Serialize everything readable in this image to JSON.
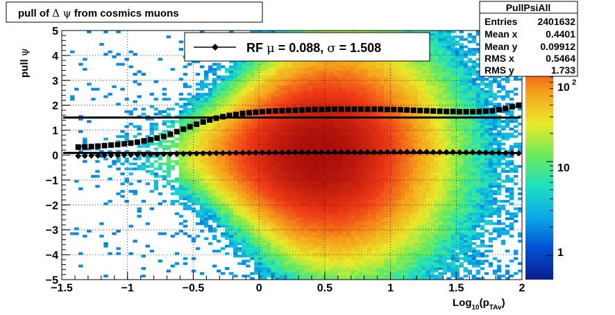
{
  "title_prefix": "pull of ",
  "title_symbol": "Δ ψ",
  "title_suffix": " from cosmics muons",
  "stats": {
    "name": "PullPsiAll",
    "rows": [
      {
        "label": "Entries",
        "value": "2401632"
      },
      {
        "label": "Mean x",
        "value": "0.4401"
      },
      {
        "label": "Mean y",
        "value": "0.09912"
      },
      {
        "label": "RMS x",
        "value": "0.5464"
      },
      {
        "label": "RMS y",
        "value": "1.733"
      }
    ]
  },
  "legend": {
    "prefix": "RF ",
    "mu_symbol": "μ",
    "mid": " =  0.088, ",
    "sigma_symbol": "σ",
    "tail": " =   1.508"
  },
  "axes": {
    "ylabel_prefix": "pull ",
    "ylabel_symbol": "ψ",
    "xlabel_main": "Log",
    "xlabel_sub1": "10",
    "xlabel_paren": "(p",
    "xlabel_sub2": "TAv",
    "xlabel_close": ")"
  },
  "colors": {
    "palette": [
      "#0a1d8f",
      "#0050d6",
      "#0aa8e8",
      "#1ee0c0",
      "#6cea5a",
      "#e8ea2a",
      "#f5a21a",
      "#ef3a16",
      "#a80d08"
    ],
    "markers": "#000000",
    "fit_line": "#000000"
  },
  "chart_data": {
    "type": "heatmap",
    "xlim": [
      -1.5,
      2
    ],
    "ylim": [
      -5,
      5
    ],
    "x_ticks": [
      "−1.5",
      "−1",
      "−0.5",
      "0",
      "0.5",
      "1",
      "1.5",
      "2"
    ],
    "y_ticks": [
      "−5",
      "−4",
      "−3",
      "−2",
      "−1",
      "0",
      "1",
      "2",
      "3",
      "4",
      "5"
    ],
    "z_scale": "log",
    "z_ticks": [
      "1",
      "10",
      "10"
    ],
    "z_tick_exponent": "2",
    "z_tick_values": [
      1,
      10,
      100
    ],
    "grid": true,
    "legend_position": "top-center",
    "series": [
      {
        "name": "RF",
        "marker": "diamond",
        "x": [
          -1.375,
          -1.325,
          -1.275,
          -1.225,
          -1.175,
          -1.125,
          -1.075,
          -1.025,
          -0.975,
          -0.925,
          -0.875,
          -0.825,
          -0.775,
          -0.725,
          -0.675,
          -0.625,
          -0.575,
          -0.525,
          -0.475,
          -0.425,
          -0.375,
          -0.325,
          -0.275,
          -0.225,
          -0.175,
          -0.125,
          -0.075,
          -0.025,
          0.025,
          0.075,
          0.125,
          0.175,
          0.225,
          0.275,
          0.325,
          0.375,
          0.425,
          0.475,
          0.525,
          0.575,
          0.625,
          0.675,
          0.725,
          0.775,
          0.825,
          0.875,
          0.925,
          0.975,
          1.025,
          1.075,
          1.125,
          1.175,
          1.225,
          1.275,
          1.325,
          1.375,
          1.425,
          1.475,
          1.525,
          1.575,
          1.625,
          1.675,
          1.725,
          1.775,
          1.825,
          1.875,
          1.925,
          1.975
        ],
        "y": [
          -0.04,
          -0.03,
          -0.02,
          -0.02,
          -0.01,
          -0.01,
          0.0,
          0.0,
          0.01,
          0.02,
          0.02,
          0.03,
          0.03,
          0.04,
          0.04,
          0.05,
          0.05,
          0.06,
          0.06,
          0.07,
          0.07,
          0.08,
          0.08,
          0.08,
          0.09,
          0.09,
          0.09,
          0.1,
          0.1,
          0.1,
          0.1,
          0.1,
          0.11,
          0.11,
          0.11,
          0.11,
          0.11,
          0.11,
          0.11,
          0.12,
          0.12,
          0.12,
          0.12,
          0.12,
          0.12,
          0.12,
          0.12,
          0.13,
          0.13,
          0.13,
          0.13,
          0.13,
          0.13,
          0.13,
          0.12,
          0.12,
          0.12,
          0.12,
          0.11,
          0.11,
          0.11,
          0.1,
          0.1,
          0.09,
          0.09,
          0.08,
          0.08,
          0.07
        ]
      },
      {
        "name": "sigma",
        "marker": "square",
        "x": [
          -1.375,
          -1.325,
          -1.275,
          -1.225,
          -1.175,
          -1.125,
          -1.075,
          -1.025,
          -0.975,
          -0.925,
          -0.875,
          -0.825,
          -0.775,
          -0.725,
          -0.675,
          -0.625,
          -0.575,
          -0.525,
          -0.475,
          -0.425,
          -0.375,
          -0.325,
          -0.275,
          -0.225,
          -0.175,
          -0.125,
          -0.075,
          -0.025,
          0.025,
          0.075,
          0.125,
          0.175,
          0.225,
          0.275,
          0.325,
          0.375,
          0.425,
          0.475,
          0.525,
          0.575,
          0.625,
          0.675,
          0.725,
          0.775,
          0.825,
          0.875,
          0.925,
          0.975,
          1.025,
          1.075,
          1.125,
          1.175,
          1.225,
          1.275,
          1.325,
          1.375,
          1.425,
          1.475,
          1.525,
          1.575,
          1.625,
          1.675,
          1.725,
          1.775,
          1.825,
          1.875,
          1.925,
          1.975
        ],
        "y": [
          0.32,
          0.33,
          0.34,
          0.36,
          0.38,
          0.4,
          0.42,
          0.45,
          0.48,
          0.52,
          0.57,
          0.62,
          0.68,
          0.75,
          0.84,
          0.94,
          1.04,
          1.14,
          1.24,
          1.33,
          1.41,
          1.48,
          1.54,
          1.59,
          1.63,
          1.67,
          1.7,
          1.72,
          1.74,
          1.76,
          1.77,
          1.78,
          1.79,
          1.8,
          1.81,
          1.82,
          1.83,
          1.83,
          1.84,
          1.84,
          1.84,
          1.84,
          1.84,
          1.84,
          1.84,
          1.84,
          1.84,
          1.83,
          1.83,
          1.82,
          1.81,
          1.8,
          1.79,
          1.78,
          1.77,
          1.76,
          1.75,
          1.75,
          1.74,
          1.74,
          1.74,
          1.75,
          1.76,
          1.78,
          1.82,
          1.87,
          1.94,
          2.0
        ]
      }
    ],
    "fit_lines": [
      {
        "name": "sigma fit",
        "y": 1.508
      },
      {
        "name": "mu fit",
        "y": 0.088
      }
    ]
  }
}
